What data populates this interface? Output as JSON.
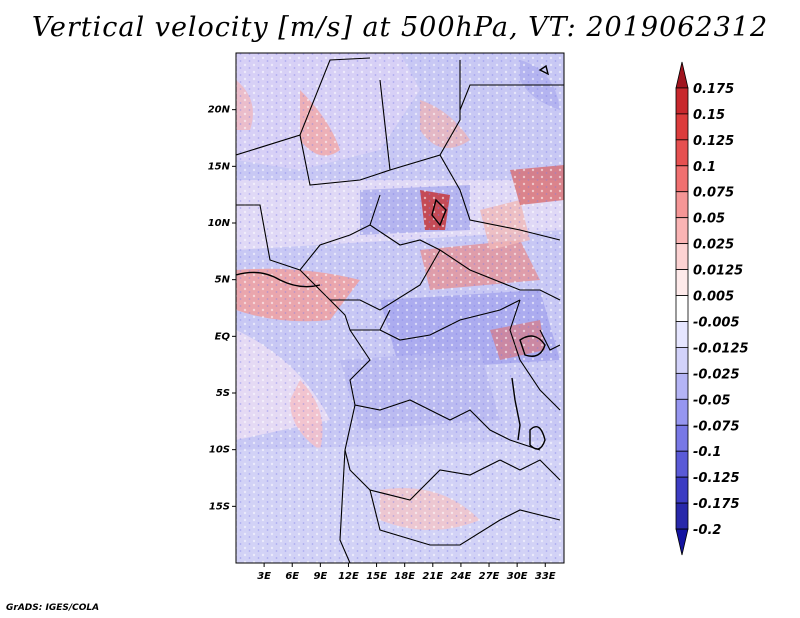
{
  "title": "Vertical velocity [m/s] at 500hPa, VT: 2019062312",
  "credit": "GrADS: IGES/COLA",
  "map": {
    "lon_range": [
      0,
      35
    ],
    "lat_range": [
      -20,
      25
    ],
    "lat_ticks": [
      {
        "value": 20,
        "label": "20N"
      },
      {
        "value": 15,
        "label": "15N"
      },
      {
        "value": 10,
        "label": "10N"
      },
      {
        "value": 5,
        "label": "5N"
      },
      {
        "value": 0,
        "label": "EQ"
      },
      {
        "value": -5,
        "label": "5S"
      },
      {
        "value": -10,
        "label": "10S"
      },
      {
        "value": -15,
        "label": "15S"
      }
    ],
    "lon_ticks": [
      {
        "value": 3,
        "label": "3E"
      },
      {
        "value": 6,
        "label": "6E"
      },
      {
        "value": 9,
        "label": "9E"
      },
      {
        "value": 12,
        "label": "12E"
      },
      {
        "value": 15,
        "label": "15E"
      },
      {
        "value": 18,
        "label": "18E"
      },
      {
        "value": 21,
        "label": "21E"
      },
      {
        "value": 24,
        "label": "24E"
      },
      {
        "value": 27,
        "label": "27E"
      },
      {
        "value": 30,
        "label": "30E"
      },
      {
        "value": 33,
        "label": "33E"
      }
    ]
  },
  "colorbar": {
    "labels": [
      "0.175",
      "0.15",
      "0.125",
      "0.1",
      "0.075",
      "0.05",
      "0.025",
      "0.0125",
      "0.005",
      "-0.005",
      "-0.0125",
      "-0.025",
      "-0.05",
      "-0.075",
      "-0.1",
      "-0.125",
      "-0.175",
      "-0.2"
    ],
    "colors": [
      "#a0141e",
      "#c8282d",
      "#dc3c3c",
      "#e65050",
      "#f07070",
      "#f59696",
      "#fab4b4",
      "#fcd2d2",
      "#feeaea",
      "#ffffff",
      "#e6e6ff",
      "#d2d2fa",
      "#b4b4f5",
      "#9696f0",
      "#7878e6",
      "#5a5ad7",
      "#3c3cc3",
      "#2828aa",
      "#1414a0"
    ]
  }
}
